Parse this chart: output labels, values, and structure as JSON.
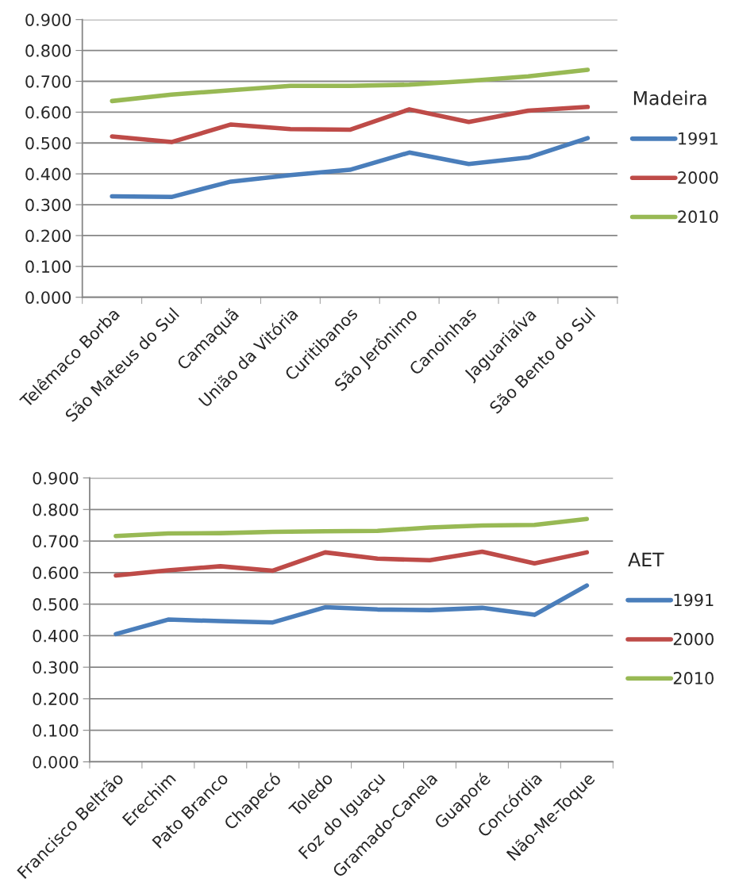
{
  "chart_data": [
    {
      "type": "line",
      "legend_title": "Madeira",
      "categories": [
        "Telêmaco Borba",
        "São Mateus do Sul",
        "Camaquã",
        "União da Vitória",
        "Curitibanos",
        "São Jerônimo",
        "Canoinhas",
        "Jaguariaíva",
        "São Bento do Sul"
      ],
      "series": [
        {
          "name": "1991",
          "color": "#4a7ebb",
          "values": [
            0.327,
            0.325,
            0.375,
            0.396,
            0.413,
            0.469,
            0.432,
            0.453,
            0.516
          ]
        },
        {
          "name": "2000",
          "color": "#be4b48",
          "values": [
            0.521,
            0.503,
            0.56,
            0.545,
            0.543,
            0.609,
            0.568,
            0.605,
            0.617
          ]
        },
        {
          "name": "2010",
          "color": "#98b954",
          "values": [
            0.636,
            0.657,
            0.671,
            0.685,
            0.685,
            0.689,
            0.701,
            0.716,
            0.737
          ]
        }
      ],
      "ylim": [
        0,
        0.9
      ],
      "yticks": [
        {
          "value": 0,
          "label": "0.000"
        },
        {
          "value": 0.1,
          "label": "0.100"
        },
        {
          "value": 0.2,
          "label": "0.200"
        },
        {
          "value": 0.3,
          "label": "0.300"
        },
        {
          "value": 0.4,
          "label": "0.400"
        },
        {
          "value": 0.5,
          "label": "0.500"
        },
        {
          "value": 0.6,
          "label": "0.600"
        },
        {
          "value": 0.7,
          "label": "0.700"
        },
        {
          "value": 0.8,
          "label": "0.800"
        },
        {
          "value": 0.9,
          "label": "0.900"
        }
      ],
      "grid": "y",
      "legend": "right",
      "marker": "none",
      "line_style": "solid"
    },
    {
      "type": "line",
      "legend_title": "AET",
      "categories": [
        "Francisco Beltrão",
        "Erechim",
        "Pato Branco",
        "Chapecó",
        "Toledo",
        "Foz do Iguaçu",
        "Gramado-Canela",
        "Guaporé",
        "Concórdia",
        "Não-Me-Toque"
      ],
      "series": [
        {
          "name": "1991",
          "color": "#4a7ebb",
          "values": [
            0.405,
            0.451,
            0.446,
            0.442,
            0.49,
            0.483,
            0.481,
            0.488,
            0.466,
            0.559
          ]
        },
        {
          "name": "2000",
          "color": "#be4b48",
          "values": [
            0.591,
            0.607,
            0.62,
            0.606,
            0.664,
            0.644,
            0.639,
            0.666,
            0.629,
            0.664
          ]
        },
        {
          "name": "2010",
          "color": "#98b954",
          "values": [
            0.716,
            0.724,
            0.725,
            0.729,
            0.731,
            0.732,
            0.743,
            0.749,
            0.751,
            0.77
          ]
        }
      ],
      "ylim": [
        0,
        0.9
      ],
      "yticks": [
        {
          "value": 0,
          "label": "0.000"
        },
        {
          "value": 0.1,
          "label": "0.100"
        },
        {
          "value": 0.2,
          "label": "0.200"
        },
        {
          "value": 0.3,
          "label": "0.300"
        },
        {
          "value": 0.4,
          "label": "0.400"
        },
        {
          "value": 0.5,
          "label": "0.500"
        },
        {
          "value": 0.6,
          "label": "0.600"
        },
        {
          "value": 0.7,
          "label": "0.700"
        },
        {
          "value": 0.8,
          "label": "0.800"
        },
        {
          "value": 0.9,
          "label": "0.900"
        }
      ],
      "grid": "y",
      "legend": "right",
      "marker": "none",
      "line_style": "solid"
    }
  ]
}
